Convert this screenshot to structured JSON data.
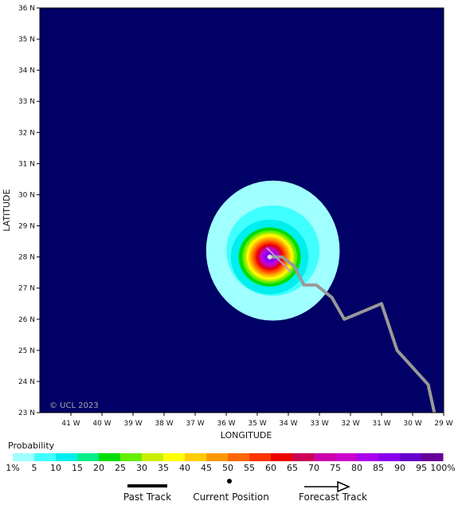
{
  "map": {
    "background_color": "#000066",
    "watermark": "© UCL 2023",
    "xlabel": "LONGITUDE",
    "ylabel": "LATITUDE",
    "lon_ticks": [
      "41 W",
      "40 W",
      "39 W",
      "38 W",
      "37 W",
      "36 W",
      "35 W",
      "34 W",
      "33 W",
      "32 W",
      "31 W",
      "30 W",
      "29 W"
    ],
    "lat_ticks": [
      "36 N",
      "35 N",
      "34 N",
      "33 N",
      "32 N",
      "31 N",
      "30 N",
      "29 N",
      "28 N",
      "27 N",
      "26 N",
      "25 N",
      "24 N",
      "23 N"
    ],
    "lon_range": [
      -42,
      -29
    ],
    "lat_range": [
      23,
      36
    ]
  },
  "storm": {
    "current_position": {
      "lat": 28.0,
      "lon": -34.6
    },
    "past_track": [
      {
        "lat": 28.3,
        "lon": -34.7
      },
      {
        "lat": 28.0,
        "lon": -34.4
      },
      {
        "lat": 27.5,
        "lon": -33.9
      }
    ],
    "forecast_track": [
      {
        "lat": 28.0,
        "lon": -34.6
      },
      {
        "lat": 28.0,
        "lon": -34.2
      },
      {
        "lat": 27.7,
        "lon": -33.8
      },
      {
        "lat": 27.1,
        "lon": -33.5
      },
      {
        "lat": 27.1,
        "lon": -33.1
      },
      {
        "lat": 26.7,
        "lon": -32.6
      },
      {
        "lat": 26.0,
        "lon": -32.2
      },
      {
        "lat": 26.5,
        "lon": -31.0
      },
      {
        "lat": 25.0,
        "lon": -30.5
      },
      {
        "lat": 23.9,
        "lon": -29.5
      },
      {
        "lat": 23.0,
        "lon": -29.3
      }
    ],
    "probability_rings": [
      {
        "level": 1,
        "lat_radius": 2.25,
        "lon_radius": 2.15
      },
      {
        "level": 5,
        "lat_radius": 1.45,
        "lon_radius": 1.5
      },
      {
        "level": 10,
        "lat_radius": 1.2,
        "lon_radius": 1.25
      },
      {
        "level": 20,
        "lat_radius": 0.95,
        "lon_radius": 1.0
      },
      {
        "level": 25,
        "lat_radius": 0.85,
        "lon_radius": 0.88
      },
      {
        "level": 30,
        "lat_radius": 0.78,
        "lon_radius": 0.8
      },
      {
        "level": 35,
        "lat_radius": 0.72,
        "lon_radius": 0.74
      },
      {
        "level": 40,
        "lat_radius": 0.66,
        "lon_radius": 0.68
      },
      {
        "level": 45,
        "lat_radius": 0.6,
        "lon_radius": 0.62
      },
      {
        "level": 50,
        "lat_radius": 0.54,
        "lon_radius": 0.56
      },
      {
        "level": 55,
        "lat_radius": 0.48,
        "lon_radius": 0.5
      },
      {
        "level": 60,
        "lat_radius": 0.42,
        "lon_radius": 0.44
      },
      {
        "level": 65,
        "lat_radius": 0.37,
        "lon_radius": 0.38
      },
      {
        "level": 70,
        "lat_radius": 0.32,
        "lon_radius": 0.33
      },
      {
        "level": 75,
        "lat_radius": 0.27,
        "lon_radius": 0.28
      },
      {
        "level": 80,
        "lat_radius": 0.22,
        "lon_radius": 0.23
      },
      {
        "level": 85,
        "lat_radius": 0.17,
        "lon_radius": 0.18
      }
    ]
  },
  "legend": {
    "title": "Probability",
    "labels": [
      "1%",
      "5",
      "10",
      "15",
      "20",
      "25",
      "30",
      "35",
      "40",
      "45",
      "50",
      "55",
      "60",
      "65",
      "70",
      "75",
      "80",
      "85",
      "90",
      "95",
      "100%"
    ],
    "colors": [
      "#a0ffff",
      "#40ffff",
      "#00eeee",
      "#00ee88",
      "#00dd00",
      "#66ee00",
      "#ccee00",
      "#ffff00",
      "#ffcc00",
      "#ff9900",
      "#ff6600",
      "#ff3300",
      "#ee0000",
      "#cc0055",
      "#cc00aa",
      "#cc00cc",
      "#aa00ee",
      "#8800ee",
      "#6600cc",
      "#660099"
    ]
  },
  "key": {
    "past_track": "Past Track",
    "current_position": "Current Position",
    "forecast_track": "Forecast Track"
  }
}
